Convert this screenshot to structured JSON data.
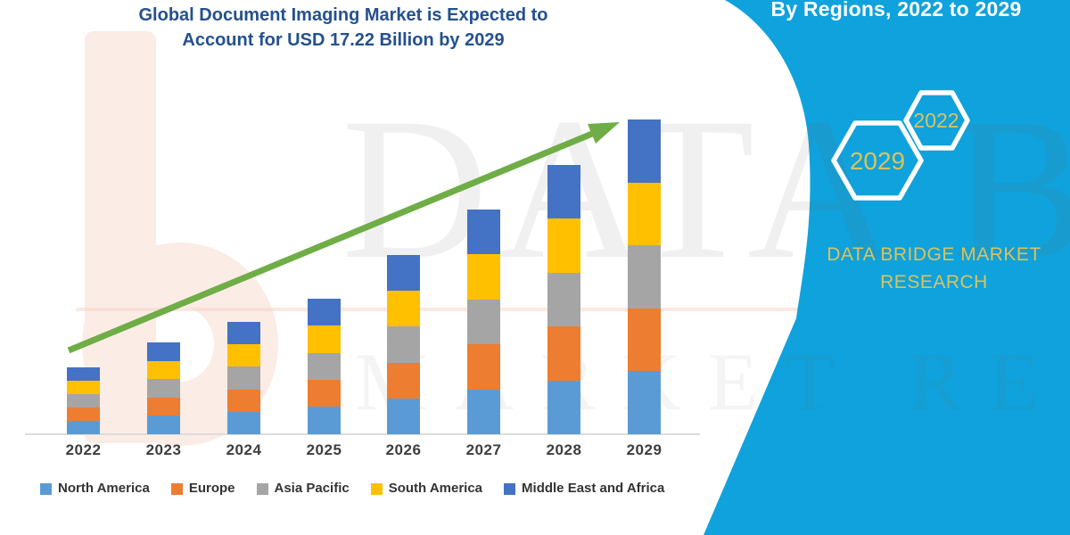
{
  "title": {
    "line1": "Global Document Imaging Market is Expected to",
    "line2": "Account for USD 17.22 Billion by 2029"
  },
  "panel": {
    "heading": "By Regions, 2022 to 2029",
    "hexagons": [
      {
        "label": "2029"
      },
      {
        "label": "2022"
      }
    ],
    "brand_line1": "DATA BRIDGE MARKET",
    "brand_line2": "RESEARCH"
  },
  "watermark": {
    "line1": "DATA BRIDGE",
    "line2": "MARKET RESEARCH",
    "logo": "data-bridge-b-logo"
  },
  "colors": {
    "panel_cyan": "#0fa2dc",
    "brand_gold": "#d9c35e",
    "title_blue": "#24518e",
    "trend_green": "#6fad46",
    "axis_gray": "#dcdcdc"
  },
  "chart_data": {
    "type": "bar",
    "stacked": true,
    "title": "Global Document Imaging Market is Expected to Account for USD 17.22 Billion by 2029",
    "unit": "USD Billion",
    "categories": [
      "2022",
      "2023",
      "2024",
      "2025",
      "2026",
      "2027",
      "2028",
      "2029"
    ],
    "series": [
      {
        "name": "North America",
        "color": "#5b9bd5",
        "values": [
          0.73,
          1.0,
          1.23,
          1.48,
          1.96,
          2.46,
          2.95,
          3.44
        ]
      },
      {
        "name": "Europe",
        "color": "#ed7d31",
        "values": [
          0.73,
          1.0,
          1.23,
          1.48,
          1.96,
          2.46,
          2.95,
          3.44
        ]
      },
      {
        "name": "Asia Pacific",
        "color": "#a5a5a5",
        "values": [
          0.73,
          1.0,
          1.23,
          1.48,
          1.96,
          2.46,
          2.95,
          3.44
        ]
      },
      {
        "name": "South America",
        "color": "#ffc000",
        "values": [
          0.73,
          1.0,
          1.23,
          1.48,
          1.96,
          2.46,
          2.95,
          3.44
        ]
      },
      {
        "name": "Middle East and Africa",
        "color": "#4472c4",
        "values": [
          0.73,
          1.0,
          1.23,
          1.48,
          1.96,
          2.46,
          2.95,
          3.44
        ]
      }
    ],
    "totals": [
      3.66,
      4.98,
      6.15,
      7.41,
      9.8,
      12.29,
      14.73,
      17.22
    ],
    "xlabel": "",
    "ylabel": "",
    "ylim": [
      0,
      19
    ],
    "grid": false,
    "legend_position": "bottom",
    "trend_arrow": true
  }
}
